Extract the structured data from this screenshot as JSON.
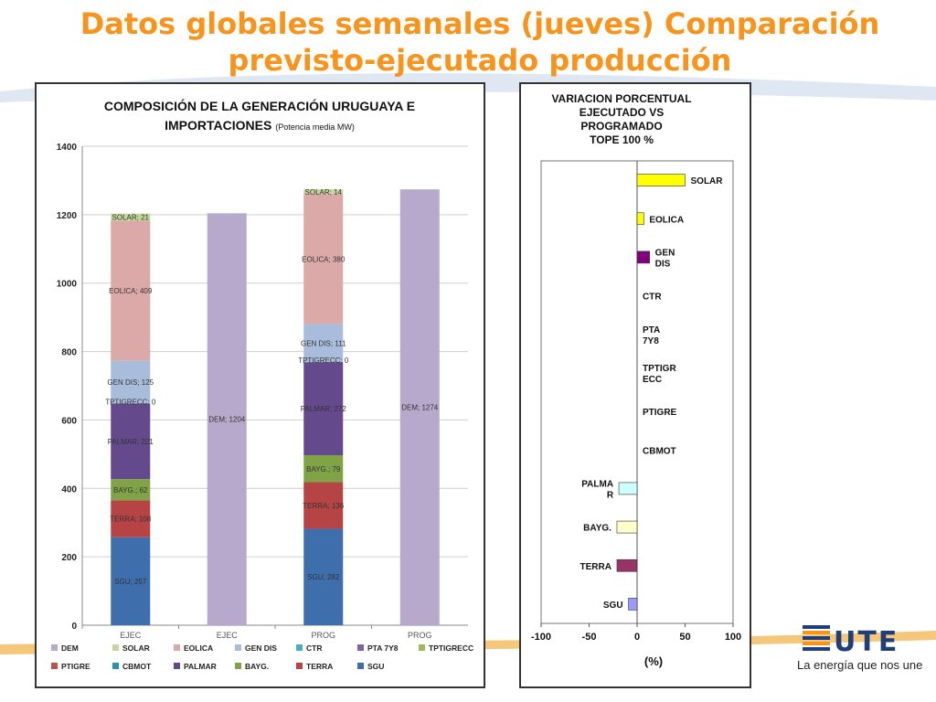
{
  "slide": {
    "title_line1": "Datos globales semanales  (jueves) Comparación",
    "title_line2": "previsto-ejecutado producción",
    "slogan": "La energía que nos une",
    "logo_text": "UTE",
    "colors": {
      "title": "#f7941d",
      "logo_blue": "#1f3e7a",
      "logo_orange": "#f7941d"
    }
  },
  "chart_data": [
    {
      "type": "bar",
      "stacked": true,
      "title_line1": "COMPOSICIÓN DE LA GENERACIÓN URUGUAYA E",
      "title_line2": "IMPORTACIONES",
      "title_suffix": "(Potencia media MW)",
      "categories": [
        "EJEC",
        "EJEC",
        "PROG",
        "PROG"
      ],
      "ylim": [
        0,
        1400
      ],
      "yticks": [
        0,
        200,
        400,
        600,
        800,
        1000,
        1200,
        1400
      ],
      "grid": true,
      "legend_position": "bottom",
      "series": [
        {
          "name": "SGU",
          "color": "#3e6eac",
          "values": [
            257,
            null,
            282,
            null
          ]
        },
        {
          "name": "TERRA",
          "color": "#b64444",
          "values": [
            108,
            null,
            136,
            null
          ]
        },
        {
          "name": "BAYG.",
          "color": "#80a348",
          "values": [
            62,
            null,
            79,
            null
          ]
        },
        {
          "name": "PALMAR",
          "color": "#644a8c",
          "values": [
            221,
            null,
            272,
            null
          ]
        },
        {
          "name": "CBMOT",
          "color": "#2f8fb0",
          "values": [
            0,
            null,
            0,
            null
          ]
        },
        {
          "name": "PTIGRE",
          "color": "#c0504d",
          "values": [
            0,
            null,
            0,
            null
          ]
        },
        {
          "name": "TPTIGRECC",
          "color": "#9bbb59",
          "values": [
            0,
            null,
            0,
            null
          ]
        },
        {
          "name": "PTA 7Y8",
          "color": "#8064a2",
          "values": [
            0,
            null,
            0,
            null
          ]
        },
        {
          "name": "CTR",
          "color": "#4bacc6",
          "values": [
            0,
            null,
            0,
            null
          ]
        },
        {
          "name": "GEN DIS",
          "color": "#a8bcdc",
          "values": [
            125,
            null,
            111,
            null
          ]
        },
        {
          "name": "EOLICA",
          "color": "#dba9a8",
          "values": [
            409,
            null,
            380,
            null
          ]
        },
        {
          "name": "SOLAR",
          "color": "#c3d69b",
          "values": [
            21,
            null,
            14,
            null
          ]
        },
        {
          "name": "DEM",
          "color": "#b6a9cb",
          "values": [
            null,
            1204,
            null,
            1274
          ]
        }
      ],
      "data_labels": {
        "SGU": [
          "SGU; 257",
          "",
          "SGU; 282",
          ""
        ],
        "TERRA": [
          "TERRA; 108",
          "",
          "TERRA; 136",
          ""
        ],
        "BAYG.": [
          "BAYG.; 62",
          "",
          "BAYG.; 79",
          ""
        ],
        "PALMAR": [
          "PALMAR; 221",
          "",
          "PALMAR; 272",
          ""
        ],
        "GEN DIS": [
          "GEN DIS; 125",
          "",
          "GEN DIS; 111",
          ""
        ],
        "EOLICA": [
          "EOLICA; 409",
          "",
          "EOLICA; 380",
          ""
        ],
        "SOLAR": [
          "SOLAR; 21",
          "",
          "SOLAR; 14",
          ""
        ],
        "DEM": [
          "",
          "DEM; 1204",
          "",
          "DEM; 1274"
        ]
      },
      "overlap_labels": [
        "TPTIGRECC; 0",
        "",
        "TPTIGRECC; 0",
        ""
      ],
      "legend_order": [
        "DEM",
        "SOLAR",
        "EOLICA",
        "GEN DIS",
        "CTR",
        "PTA 7Y8",
        "TPTIGRECC",
        "PTIGRE",
        "CBMOT",
        "PALMAR",
        "BAYG.",
        "TERRA",
        "SGU"
      ]
    },
    {
      "type": "bar",
      "orientation": "horizontal",
      "title_lines": [
        "VARIACION  PORCENTUAL",
        "EJECUTADO  VS",
        "PROGRAMADO",
        "TOPE 100 %"
      ],
      "xlabel": "(%)",
      "xlim": [
        -100,
        100
      ],
      "xticks": [
        -100,
        -50,
        0,
        50,
        100
      ],
      "categories": [
        "SOLAR",
        "EOLICA",
        "GEN DIS",
        "CTR",
        "PTA 7Y8",
        "TPTIGRECC",
        "PTIGRE",
        "CBMOT",
        "PALMAR",
        "BAYG.",
        "TERRA",
        "SGU"
      ],
      "category_labels": [
        [
          "SOLAR"
        ],
        [
          "EOLICA"
        ],
        [
          "GEN",
          "DIS"
        ],
        [
          "CTR"
        ],
        [
          "PTA",
          "7Y8"
        ],
        [
          "TPTIGR",
          "ECC"
        ],
        [
          "PTIGRE"
        ],
        [
          "CBMOT"
        ],
        [
          "PALMA",
          "R"
        ],
        [
          "BAYG."
        ],
        [
          "TERRA"
        ],
        [
          "SGU"
        ]
      ],
      "values": [
        50,
        7,
        13,
        0,
        0,
        0,
        0,
        0,
        -19,
        -21,
        -21,
        -9
      ],
      "colors": [
        "#ffff00",
        "#ffff00",
        "#800080",
        "#cccccc",
        "#cccccc",
        "#cccccc",
        "#cccccc",
        "#cccccc",
        "#ccffff",
        "#ffffcc",
        "#993366",
        "#9999ff"
      ]
    }
  ]
}
